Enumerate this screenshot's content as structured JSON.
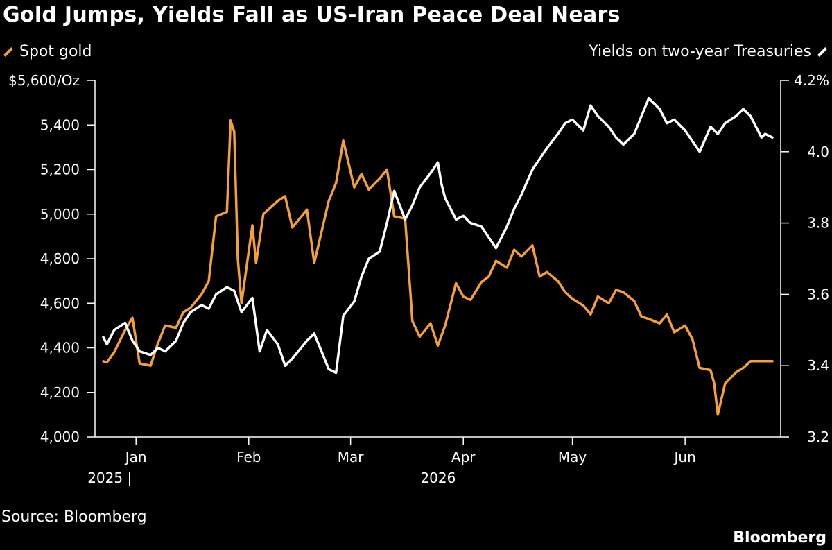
{
  "title": "Gold Jumps, Yields Fall as US-Iran Peace Deal Nears",
  "source": "Source: Bloomberg",
  "brand": "Bloomberg",
  "colors": {
    "gold": "#f5a033",
    "yield": "#ffffff",
    "background": "#000000"
  },
  "chart_data": {
    "type": "line",
    "title": "Gold Jumps, Yields Fall as US-Iran Peace Deal Nears",
    "left_axis": {
      "label": "Spot gold",
      "range": [
        4000,
        5600
      ],
      "ticks": [
        "$5,600/Oz",
        "5,400",
        "5,200",
        "5,000",
        "4,800",
        "4,600",
        "4,400",
        "4,200",
        "4,000"
      ],
      "tick_values": [
        5600,
        5400,
        5200,
        5000,
        4800,
        4600,
        4400,
        4200,
        4000
      ]
    },
    "right_axis": {
      "label": "Yields on two-year Treasuries",
      "range": [
        3.2,
        4.2
      ],
      "ticks": [
        "4.2%",
        "4.0",
        "3.8",
        "3.6",
        "3.4",
        "3.2"
      ],
      "tick_values": [
        4.2,
        4.0,
        3.8,
        3.6,
        3.4,
        3.2
      ]
    },
    "x_axis": {
      "months": [
        "Jan",
        "Feb",
        "Mar",
        "Apr",
        "May",
        "Jun"
      ],
      "year_labels": [
        "2025 |",
        "2026"
      ],
      "range": [
        "2025-12-23",
        "2026-06-25"
      ],
      "month_starts": [
        "2026-01-01",
        "2026-02-01",
        "2026-03-01",
        "2026-04-01",
        "2026-05-01",
        "2026-06-01"
      ]
    },
    "legend_placement": "top",
    "grid": false,
    "series": [
      {
        "name": "Spot gold",
        "axis": "left",
        "x": [
          "2025-12-23",
          "2025-12-24",
          "2025-12-26",
          "2025-12-29",
          "2025-12-31",
          "2026-01-02",
          "2026-01-05",
          "2026-01-07",
          "2026-01-09",
          "2026-01-12",
          "2026-01-14",
          "2026-01-16",
          "2026-01-19",
          "2026-01-21",
          "2026-01-23",
          "2026-01-26",
          "2026-01-27",
          "2026-01-28",
          "2026-01-29",
          "2026-01-30",
          "2026-02-02",
          "2026-02-03",
          "2026-02-05",
          "2026-02-09",
          "2026-02-11",
          "2026-02-13",
          "2026-02-17",
          "2026-02-19",
          "2026-02-23",
          "2026-02-25",
          "2026-02-27",
          "2026-03-02",
          "2026-03-04",
          "2026-03-06",
          "2026-03-09",
          "2026-03-11",
          "2026-03-13",
          "2026-03-16",
          "2026-03-18",
          "2026-03-20",
          "2026-03-23",
          "2026-03-25",
          "2026-03-27",
          "2026-03-30",
          "2026-04-01",
          "2026-04-03",
          "2026-04-06",
          "2026-04-08",
          "2026-04-10",
          "2026-04-13",
          "2026-04-15",
          "2026-04-17",
          "2026-04-20",
          "2026-04-22",
          "2026-04-24",
          "2026-04-27",
          "2026-04-29",
          "2026-05-01",
          "2026-05-04",
          "2026-05-06",
          "2026-05-08",
          "2026-05-11",
          "2026-05-13",
          "2026-05-15",
          "2026-05-18",
          "2026-05-20",
          "2026-05-22",
          "2026-05-25",
          "2026-05-27",
          "2026-05-29",
          "2026-06-01",
          "2026-06-03",
          "2026-06-05",
          "2026-06-08",
          "2026-06-09",
          "2026-06-10",
          "2026-06-12",
          "2026-06-15",
          "2026-06-17",
          "2026-06-19",
          "2026-06-22",
          "2026-06-23",
          "2026-06-25"
        ],
        "values": [
          4340,
          4335,
          4380,
          4480,
          4535,
          4330,
          4320,
          4420,
          4500,
          4490,
          4560,
          4580,
          4640,
          4700,
          4990,
          5010,
          5420,
          5370,
          4800,
          4600,
          4950,
          4780,
          5000,
          5060,
          5080,
          4940,
          5020,
          4780,
          5060,
          5140,
          5330,
          5120,
          5180,
          5110,
          5160,
          5200,
          4990,
          4980,
          4520,
          4450,
          4510,
          4410,
          4500,
          4690,
          4630,
          4615,
          4695,
          4720,
          4790,
          4760,
          4840,
          4810,
          4860,
          4720,
          4740,
          4700,
          4650,
          4620,
          4590,
          4550,
          4630,
          4600,
          4660,
          4650,
          4610,
          4540,
          4530,
          4510,
          4550,
          4470,
          4500,
          4440,
          4310,
          4300,
          4240,
          4100,
          4240,
          4290,
          4310,
          4340,
          4340,
          4340,
          4340
        ]
      },
      {
        "name": "Yields on two-year Treasuries",
        "axis": "right",
        "x": [
          "2025-12-23",
          "2025-12-24",
          "2025-12-26",
          "2025-12-29",
          "2025-12-31",
          "2026-01-02",
          "2026-01-05",
          "2026-01-07",
          "2026-01-09",
          "2026-01-12",
          "2026-01-14",
          "2026-01-16",
          "2026-01-19",
          "2026-01-21",
          "2026-01-23",
          "2026-01-26",
          "2026-01-28",
          "2026-01-30",
          "2026-02-02",
          "2026-02-04",
          "2026-02-06",
          "2026-02-09",
          "2026-02-11",
          "2026-02-13",
          "2026-02-17",
          "2026-02-19",
          "2026-02-23",
          "2026-02-25",
          "2026-02-27",
          "2026-03-02",
          "2026-03-04",
          "2026-03-06",
          "2026-03-09",
          "2026-03-11",
          "2026-03-13",
          "2026-03-16",
          "2026-03-18",
          "2026-03-20",
          "2026-03-23",
          "2026-03-25",
          "2026-03-26",
          "2026-03-27",
          "2026-03-30",
          "2026-04-01",
          "2026-04-03",
          "2026-04-06",
          "2026-04-08",
          "2026-04-10",
          "2026-04-13",
          "2026-04-15",
          "2026-04-17",
          "2026-04-20",
          "2026-04-22",
          "2026-04-24",
          "2026-04-27",
          "2026-04-29",
          "2026-05-01",
          "2026-05-04",
          "2026-05-06",
          "2026-05-08",
          "2026-05-11",
          "2026-05-13",
          "2026-05-15",
          "2026-05-18",
          "2026-05-20",
          "2026-05-22",
          "2026-05-25",
          "2026-05-27",
          "2026-05-29",
          "2026-06-01",
          "2026-06-03",
          "2026-06-05",
          "2026-06-08",
          "2026-06-10",
          "2026-06-12",
          "2026-06-15",
          "2026-06-17",
          "2026-06-19",
          "2026-06-22",
          "2026-06-23",
          "2026-06-25"
        ],
        "values": [
          3.48,
          3.46,
          3.5,
          3.52,
          3.47,
          3.44,
          3.43,
          3.45,
          3.44,
          3.47,
          3.52,
          3.55,
          3.57,
          3.56,
          3.6,
          3.62,
          3.61,
          3.55,
          3.59,
          3.44,
          3.5,
          3.46,
          3.4,
          3.42,
          3.47,
          3.49,
          3.39,
          3.38,
          3.54,
          3.58,
          3.65,
          3.7,
          3.72,
          3.8,
          3.89,
          3.81,
          3.85,
          3.9,
          3.94,
          3.97,
          3.91,
          3.87,
          3.81,
          3.82,
          3.8,
          3.79,
          3.76,
          3.73,
          3.79,
          3.84,
          3.88,
          3.95,
          3.98,
          4.01,
          4.05,
          4.08,
          4.09,
          4.06,
          4.13,
          4.1,
          4.07,
          4.04,
          4.02,
          4.05,
          4.1,
          4.15,
          4.12,
          4.08,
          4.09,
          4.06,
          4.03,
          4.0,
          4.07,
          4.05,
          4.08,
          4.1,
          4.12,
          4.1,
          4.04,
          4.05,
          4.04
        ]
      }
    ]
  }
}
